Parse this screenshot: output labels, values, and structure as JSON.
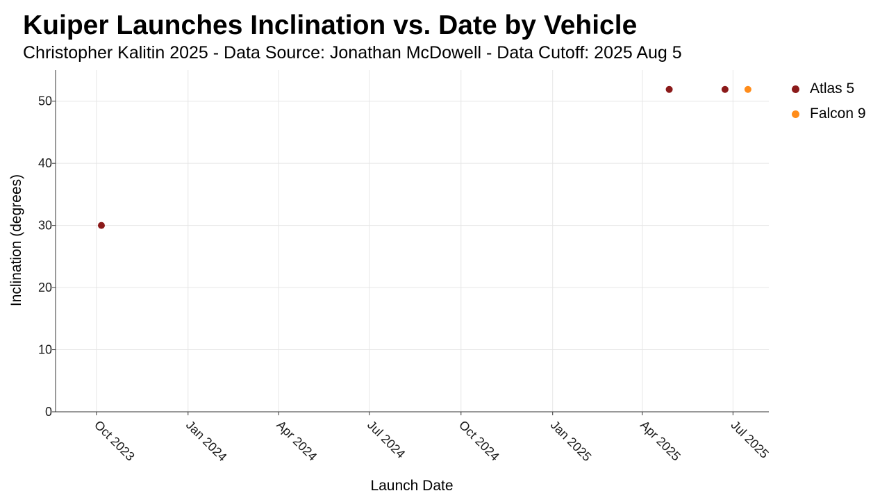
{
  "chart_data": {
    "type": "scatter",
    "title": "Kuiper Launches Inclination vs. Date by Vehicle",
    "subtitle": "Christopher Kalitin 2025 - Data Source: Jonathan McDowell - Data Cutoff: 2025 Aug 5",
    "xlabel": "Launch Date",
    "ylabel": "Inclination (degrees)",
    "x_type": "date",
    "xlim": [
      "2023-08-21",
      "2025-08-06"
    ],
    "ylim": [
      0,
      55
    ],
    "x_ticks": [
      {
        "date": "2023-10-01",
        "label": "Oct 2023"
      },
      {
        "date": "2024-01-01",
        "label": "Jan 2024"
      },
      {
        "date": "2024-04-01",
        "label": "Apr 2024"
      },
      {
        "date": "2024-07-01",
        "label": "Jul 2024"
      },
      {
        "date": "2024-10-01",
        "label": "Oct 2024"
      },
      {
        "date": "2025-01-01",
        "label": "Jan 2025"
      },
      {
        "date": "2025-04-01",
        "label": "Apr 2025"
      },
      {
        "date": "2025-07-01",
        "label": "Jul 2025"
      }
    ],
    "y_ticks": [
      0,
      10,
      20,
      30,
      40,
      50
    ],
    "grid": true,
    "legend_position": "right",
    "series": [
      {
        "name": "Atlas 5",
        "color": "#8b1a1a",
        "points": [
          {
            "x": "2023-10-06",
            "y": 30
          },
          {
            "x": "2025-04-28",
            "y": 51.9
          },
          {
            "x": "2025-06-23",
            "y": 51.9
          }
        ]
      },
      {
        "name": "Falcon 9",
        "color": "#ff8c1a",
        "points": [
          {
            "x": "2025-07-16",
            "y": 51.9
          }
        ]
      }
    ]
  }
}
